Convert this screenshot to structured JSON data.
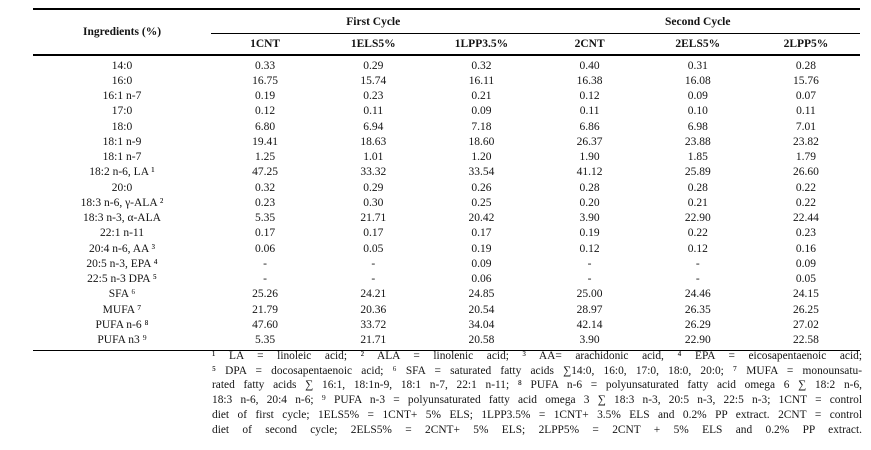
{
  "table": {
    "corner_label": "Ingredients (%)",
    "cycle_headers": [
      {
        "label": "First Cycle"
      },
      {
        "label": "Second Cycle"
      }
    ],
    "column_headers": [
      "1CNT",
      "1ELS5%",
      "1LPP3.5%",
      "2CNT",
      "2ELS5%",
      "2LPP5%"
    ],
    "rows": [
      {
        "label": "14:0",
        "values": [
          "0.33",
          "0.29",
          "0.32",
          "0.40",
          "0.31",
          "0.28"
        ]
      },
      {
        "label": "16:0",
        "values": [
          "16.75",
          "15.74",
          "16.11",
          "16.38",
          "16.08",
          "15.76"
        ]
      },
      {
        "label": "16:1 n-7",
        "values": [
          "0.19",
          "0.23",
          "0.21",
          "0.12",
          "0.09",
          "0.07"
        ]
      },
      {
        "label": "17:0",
        "values": [
          "0.12",
          "0.11",
          "0.09",
          "0.11",
          "0.10",
          "0.11"
        ]
      },
      {
        "label": "18:0",
        "values": [
          "6.80",
          "6.94",
          "7.18",
          "6.86",
          "6.98",
          "7.01"
        ]
      },
      {
        "label": "18:1 n-9",
        "values": [
          "19.41",
          "18.63",
          "18.60",
          "26.37",
          "23.88",
          "23.82"
        ]
      },
      {
        "label": "18:1 n-7",
        "values": [
          "1.25",
          "1.01",
          "1.20",
          "1.90",
          "1.85",
          "1.79"
        ]
      },
      {
        "label": "18:2 n-6, LA ¹",
        "values": [
          "47.25",
          "33.32",
          "33.54",
          "41.12",
          "25.89",
          "26.60"
        ]
      },
      {
        "label": "20:0",
        "values": [
          "0.32",
          "0.29",
          "0.26",
          "0.28",
          "0.28",
          "0.22"
        ]
      },
      {
        "label": "18:3 n-6, γ-ALA ²",
        "values": [
          "0.23",
          "0.30",
          "0.25",
          "0.20",
          "0.21",
          "0.22"
        ]
      },
      {
        "label": "18:3 n-3, α-ALA",
        "values": [
          "5.35",
          "21.71",
          "20.42",
          "3.90",
          "22.90",
          "22.44"
        ]
      },
      {
        "label": "22:1 n-11",
        "values": [
          "0.17",
          "0.17",
          "0.17",
          "0.19",
          "0.22",
          "0.23"
        ]
      },
      {
        "label": "20:4 n-6, AA ³",
        "values": [
          "0.06",
          "0.05",
          "0.19",
          "0.12",
          "0.12",
          "0.16"
        ]
      },
      {
        "label": "20:5 n-3, EPA ⁴",
        "values": [
          "-",
          "-",
          "0.09",
          "-",
          "-",
          "0.09"
        ]
      },
      {
        "label": "22:5 n-3 DPA ⁵",
        "values": [
          "-",
          "-",
          "0.06",
          "-",
          "-",
          "0.05"
        ]
      },
      {
        "label": "SFA ⁶",
        "values": [
          "25.26",
          "24.21",
          "24.85",
          "25.00",
          "24.46",
          "24.15"
        ]
      },
      {
        "label": "MUFA ⁷",
        "values": [
          "21.79",
          "20.36",
          "20.54",
          "28.97",
          "26.35",
          "26.25"
        ]
      },
      {
        "label": "PUFA n-6 ⁸",
        "values": [
          "47.60",
          "33.72",
          "34.04",
          "42.14",
          "26.29",
          "27.02"
        ]
      },
      {
        "label": "PUFA n3 ⁹",
        "values": [
          "5.35",
          "21.71",
          "20.58",
          "3.90",
          "22.90",
          "22.58"
        ]
      }
    ]
  },
  "footnotes": {
    "lines": [
      "¹ LA = linoleic acid; ² ALA = linolenic acid; ³ AA= arachidonic acid, ⁴ EPA = eicosapentaenoic acid;",
      "⁵ DPA = docosapentaenoic acid; ⁶ SFA = saturated fatty acids ∑14:0, 16:0, 17:0, 18:0, 20:0; ⁷ MUFA = monounsatu-",
      "rated fatty acids ∑ 16:1, 18:1n-9, 18:1 n-7, 22:1 n-11; ⁸ PUFA n-6 = polyunsaturated fatty acid omega 6 ∑ 18:2 n-6,",
      "18:3 n-6, 20:4 n-6; ⁹ PUFA n-3 = polyunsaturated fatty acid omega 3 ∑ 18:3 n-3, 20:5 n-3, 22:5 n-3; 1CNT = control",
      "diet of first cycle; 1ELS5% = 1CNT+ 5% ELS; 1LPP3.5% = 1CNT+ 3.5% ELS and 0.2% PP extract. 2CNT = control",
      "diet of second cycle; 2ELS5% = 2CNT+ 5% ELS; 2LPP5% = 2CNT + 5% ELS and 0.2% PP extract."
    ]
  },
  "colors": {
    "background": "#ffffff",
    "text": "#141414",
    "rule": "#000000"
  }
}
